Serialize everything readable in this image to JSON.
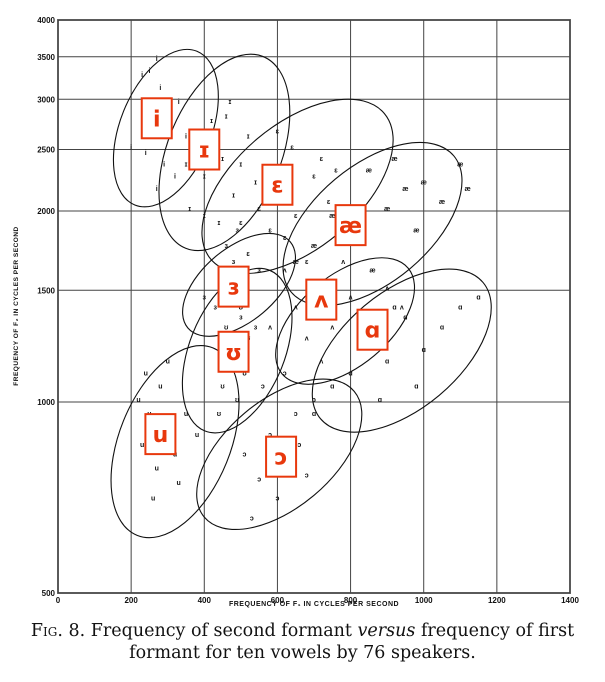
{
  "chart_data": {
    "type": "scatter",
    "xlabel": "FREQUENCY OF F₁ IN CYCLES PER SECOND",
    "ylabel": "FREQUENCY OF F₂ IN CYCLES PER SECOND",
    "x_scale": "linear",
    "y_scale": "log",
    "xlim": [
      0,
      1400
    ],
    "ylim": [
      500,
      4000
    ],
    "x_ticks": [
      0,
      200,
      400,
      600,
      800,
      1000,
      1200,
      1400
    ],
    "x_tick_labels": [
      "0",
      "200",
      "400",
      "600",
      "800",
      "1000",
      "1200",
      "1400"
    ],
    "y_ticks": [
      500,
      1000,
      1500,
      2000,
      2500,
      3000,
      3500,
      4000
    ],
    "y_tick_labels": [
      "500",
      "1000",
      "1500",
      "2000",
      "2500",
      "3000",
      "3500",
      "4000"
    ],
    "grid": true,
    "series": [
      {
        "name": "i",
        "symbol": "i",
        "center": [
          270,
          2800
        ],
        "x_range": [
          160,
          430
        ],
        "y_range": [
          2000,
          3650
        ],
        "points": [
          [
            250,
            3300
          ],
          [
            280,
            3100
          ],
          [
            230,
            2900
          ],
          [
            300,
            2750
          ],
          [
            260,
            2600
          ],
          [
            240,
            2450
          ],
          [
            290,
            2350
          ],
          [
            320,
            2250
          ],
          [
            270,
            2150
          ],
          [
            310,
            2700
          ],
          [
            350,
            2600
          ],
          [
            230,
            3250
          ],
          [
            270,
            3450
          ],
          [
            200,
            2500
          ],
          [
            330,
            2950
          ]
        ]
      },
      {
        "name": "ɪ",
        "symbol": "ɪ",
        "center": [
          400,
          2500
        ],
        "x_range": [
          280,
          630
        ],
        "y_range": [
          1700,
          3600
        ],
        "points": [
          [
            420,
            2750
          ],
          [
            380,
            2550
          ],
          [
            450,
            2400
          ],
          [
            400,
            2250
          ],
          [
            480,
            2100
          ],
          [
            360,
            2000
          ],
          [
            440,
            1900
          ],
          [
            500,
            2350
          ],
          [
            520,
            2600
          ],
          [
            350,
            2350
          ],
          [
            460,
            2800
          ],
          [
            400,
            1950
          ],
          [
            540,
            2200
          ],
          [
            470,
            2950
          ]
        ]
      },
      {
        "name": "ɛ",
        "symbol": "ɛ",
        "center": [
          600,
          2200
        ],
        "x_range": [
          430,
          880
        ],
        "y_range": [
          1450,
          3300
        ],
        "points": [
          [
            600,
            2100
          ],
          [
            550,
            2000
          ],
          [
            650,
            1950
          ],
          [
            700,
            2250
          ],
          [
            620,
            1800
          ],
          [
            520,
            1700
          ],
          [
            680,
            1650
          ],
          [
            580,
            1850
          ],
          [
            720,
            2400
          ],
          [
            640,
            2500
          ],
          [
            760,
            2300
          ],
          [
            500,
            1900
          ],
          [
            740,
            2050
          ],
          [
            600,
            2650
          ]
        ]
      },
      {
        "name": "æ",
        "symbol": "æ",
        "center": [
          800,
          1900
        ],
        "x_range": [
          570,
          1150
        ],
        "y_range": [
          1400,
          2600
        ],
        "points": [
          [
            850,
            2300
          ],
          [
            950,
            2150
          ],
          [
            750,
            1950
          ],
          [
            900,
            2000
          ],
          [
            1000,
            2200
          ],
          [
            800,
            1800
          ],
          [
            1050,
            2050
          ],
          [
            700,
            1750
          ],
          [
            920,
            2400
          ],
          [
            1100,
            2350
          ],
          [
            650,
            1650
          ],
          [
            860,
            1600
          ],
          [
            980,
            1850
          ],
          [
            1120,
            2150
          ]
        ]
      },
      {
        "name": "ɜ",
        "symbol": "ɜ",
        "center": [
          480,
          1520
        ],
        "x_range": [
          370,
          620
        ],
        "y_range": [
          1200,
          1950
        ],
        "points": [
          [
            480,
            1650
          ],
          [
            450,
            1550
          ],
          [
            520,
            1500
          ],
          [
            430,
            1400
          ],
          [
            500,
            1350
          ],
          [
            550,
            1600
          ],
          [
            460,
            1750
          ],
          [
            400,
            1450
          ],
          [
            540,
            1300
          ],
          [
            490,
            1850
          ]
        ]
      },
      {
        "name": "ʌ",
        "symbol": "ʌ",
        "center": [
          720,
          1450
        ],
        "x_range": [
          560,
          1010
        ],
        "y_range": [
          1000,
          1800
        ],
        "points": [
          [
            700,
            1500
          ],
          [
            650,
            1400
          ],
          [
            750,
            1300
          ],
          [
            800,
            1450
          ],
          [
            680,
            1250
          ],
          [
            850,
            1350
          ],
          [
            620,
            1600
          ],
          [
            900,
            1500
          ],
          [
            720,
            1150
          ],
          [
            780,
            1650
          ],
          [
            580,
            1300
          ],
          [
            940,
            1400
          ]
        ]
      },
      {
        "name": "ɑ",
        "symbol": "ɑ",
        "center": [
          860,
          1300
        ],
        "x_range": [
          650,
          1230
        ],
        "y_range": [
          880,
          1650
        ],
        "points": [
          [
            850,
            1250
          ],
          [
            900,
            1150
          ],
          [
            950,
            1350
          ],
          [
            800,
            1100
          ],
          [
            1000,
            1200
          ],
          [
            1050,
            1300
          ],
          [
            750,
            1050
          ],
          [
            1100,
            1400
          ],
          [
            880,
            1000
          ],
          [
            980,
            1050
          ],
          [
            700,
            950
          ],
          [
            1150,
            1450
          ],
          [
            920,
            1400
          ]
        ]
      },
      {
        "name": "ʊ",
        "symbol": "ʊ",
        "center": [
          480,
          1200
        ],
        "x_range": [
          420,
          560
        ],
        "y_range": [
          880,
          1650
        ],
        "points": [
          [
            460,
            1300
          ],
          [
            480,
            1150
          ],
          [
            500,
            1400
          ],
          [
            450,
            1050
          ],
          [
            520,
            1250
          ],
          [
            470,
            1550
          ],
          [
            440,
            950
          ],
          [
            510,
            1100
          ],
          [
            490,
            1000
          ]
        ]
      },
      {
        "name": "u",
        "symbol": "u",
        "center": [
          280,
          890
        ],
        "x_range": [
          200,
          440
        ],
        "y_range": [
          600,
          1250
        ],
        "points": [
          [
            250,
            950
          ],
          [
            300,
            900
          ],
          [
            280,
            1050
          ],
          [
            230,
            850
          ],
          [
            320,
            820
          ],
          [
            270,
            780
          ],
          [
            350,
            950
          ],
          [
            300,
            1150
          ],
          [
            240,
            1100
          ],
          [
            380,
            880
          ],
          [
            260,
            700
          ],
          [
            330,
            740
          ],
          [
            220,
            1000
          ]
        ]
      },
      {
        "name": "ɔ",
        "symbol": "ɔ",
        "center": [
          610,
          820
        ],
        "x_range": [
          420,
          790
        ],
        "y_range": [
          580,
          1180
        ],
        "points": [
          [
            580,
            880
          ],
          [
            620,
            800
          ],
          [
            550,
            750
          ],
          [
            650,
            950
          ],
          [
            600,
            700
          ],
          [
            530,
            650
          ],
          [
            700,
            1000
          ],
          [
            560,
            1050
          ],
          [
            660,
            850
          ],
          [
            510,
            820
          ],
          [
            620,
            1100
          ],
          [
            680,
            760
          ]
        ]
      }
    ]
  },
  "vowel_labels": [
    "i",
    "ɪ",
    "ɛ",
    "æ",
    "ɜ",
    "ʌ",
    "ɑ",
    "ʊ",
    "u",
    "ɔ"
  ],
  "caption": {
    "fig_label": "Fig. 8.",
    "text_before": "Frequency of second formant ",
    "emphasis": "versus",
    "text_after": " frequency of first formant for ten vowels by 76 speakers."
  },
  "colors": {
    "label_border": "#e8380d",
    "label_text": "#e8380d",
    "label_background": "#ffffff",
    "ink": "#111111",
    "grid": "#444444"
  }
}
